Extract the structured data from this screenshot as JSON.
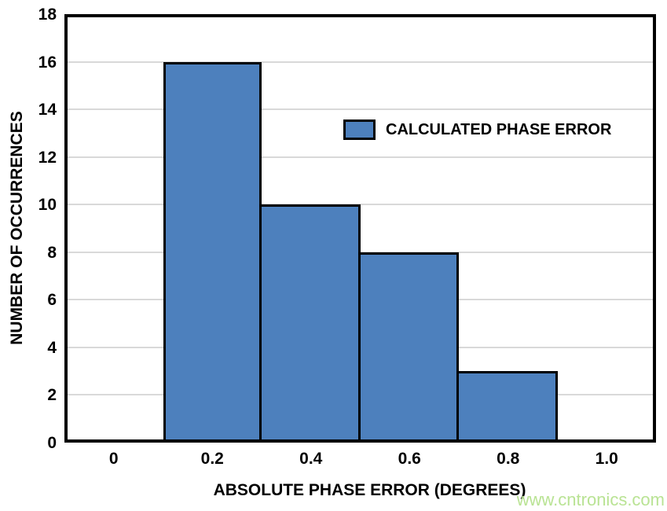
{
  "watermark": "www.cntronics.com",
  "colors": {
    "background": "#ffffff",
    "bar_fill": "#4d80bd",
    "bar_border": "#000000",
    "grid_line": "#d9d9d9",
    "axis_frame": "#000000",
    "text": "#000000",
    "watermark": "#b9e394"
  },
  "chart_data": {
    "type": "bar",
    "subtype": "histogram",
    "title": "",
    "xlabel": "ABSOLUTE PHASE ERROR (DEGREES)",
    "ylabel": "NUMBER OF OCCURRENCES",
    "legend": {
      "label": "CALCULATED PHASE ERROR",
      "position": "inside-upper-middle"
    },
    "xlim": [
      -0.1,
      1.1
    ],
    "ylim": [
      0,
      18
    ],
    "x_ticks": [
      0,
      0.2,
      0.4,
      0.6,
      0.8,
      1.0
    ],
    "x_tick_labels": [
      "0",
      "0.2",
      "0.4",
      "0.6",
      "0.8",
      "1.0"
    ],
    "y_ticks": [
      0,
      2,
      4,
      6,
      8,
      10,
      12,
      14,
      16,
      18
    ],
    "y_tick_labels": [
      "0",
      "2",
      "4",
      "6",
      "8",
      "10",
      "12",
      "14",
      "16",
      "18"
    ],
    "grid": "horizontal-only",
    "bin_width": 0.2,
    "bin_edges": [
      0.1,
      0.3,
      0.5,
      0.7,
      0.9
    ],
    "bin_centers": [
      0.2,
      0.4,
      0.6,
      0.8
    ],
    "values": [
      16,
      10,
      8,
      3
    ]
  }
}
